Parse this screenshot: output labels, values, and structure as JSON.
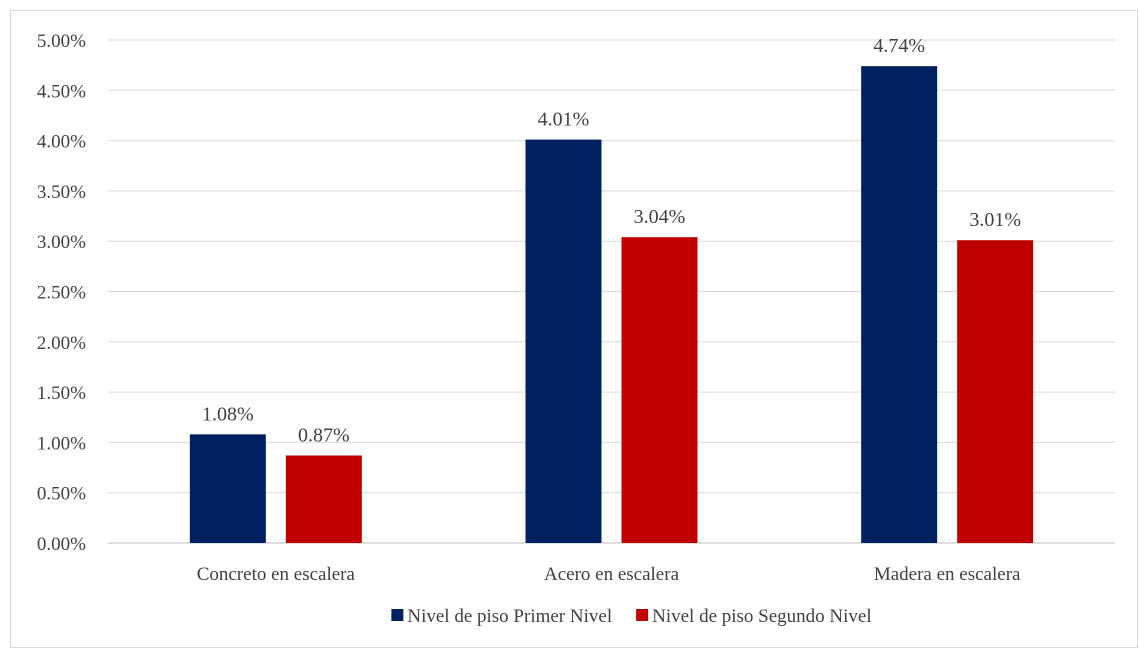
{
  "chart_data": {
    "type": "bar",
    "categories": [
      "Concreto en escalera",
      "Acero en escalera",
      "Madera en escalera"
    ],
    "series": [
      {
        "name": "Nivel de piso Primer Nivel",
        "values": [
          1.08,
          4.01,
          4.74
        ],
        "color": "#002060"
      },
      {
        "name": "Nivel de piso Segundo Nivel",
        "values": [
          0.87,
          3.04,
          3.01
        ],
        "color": "#C00000"
      }
    ],
    "value_suffix": "%",
    "ylim": [
      0,
      5
    ],
    "ytick_step": 0.5,
    "yticks": [
      "0.00%",
      "0.50%",
      "1.00%",
      "1.50%",
      "2.00%",
      "2.50%",
      "3.00%",
      "3.50%",
      "4.00%",
      "4.50%",
      "5.00%"
    ],
    "data_labels": [
      [
        "1.08%",
        "4.01%",
        "4.74%"
      ],
      [
        "0.87%",
        "3.04%",
        "3.01%"
      ]
    ],
    "grid": true,
    "legend_position": "bottom",
    "gridline_color": "#d9d9d9",
    "axis_line_color": "#bfbfbf",
    "text_color": "#404040"
  }
}
